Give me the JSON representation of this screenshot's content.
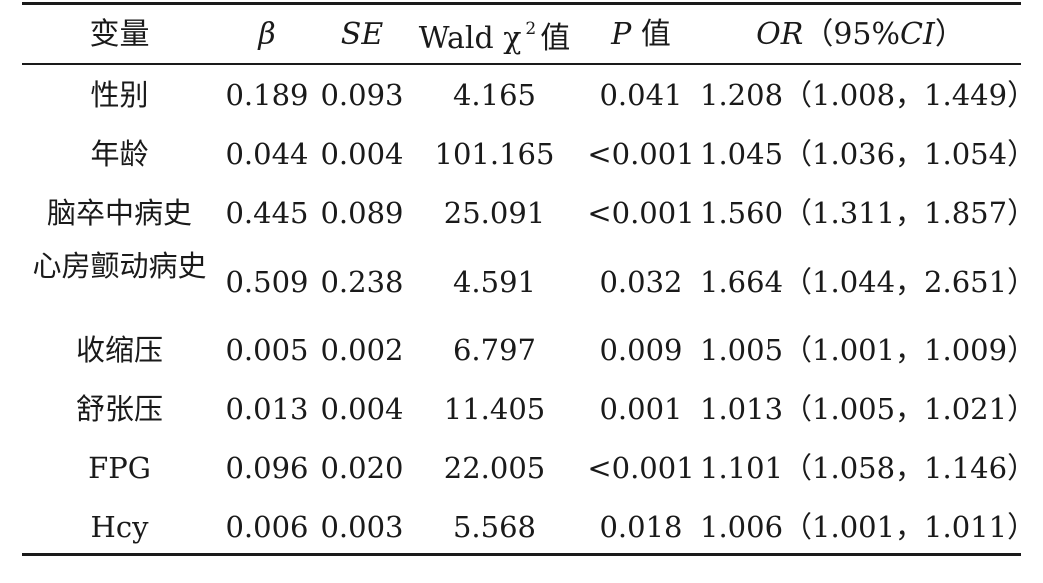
{
  "headers": {
    "variable": "变量",
    "beta": "β",
    "se": "SE",
    "wald_prefix": "Wald χ",
    "wald_sup": "2",
    "wald_suffix": "值",
    "p_italic": "P",
    "p_suffix": "值",
    "or_italic": "OR",
    "or_paren_open": "（95%",
    "or_ci_italic": "CI",
    "or_paren_close": "）"
  },
  "chart_data": {
    "type": "table",
    "columns": [
      "变量",
      "β",
      "SE",
      "Wald χ2 值",
      "P 值",
      "OR（95%CI）"
    ],
    "rows": [
      {
        "variable": "性别",
        "beta": "0.189",
        "se": "0.093",
        "wald": "4.165",
        "p": "0.041",
        "or": "1.208（1.008，1.449）"
      },
      {
        "variable": "年龄",
        "beta": "0.044",
        "se": "0.004",
        "wald": "101.165",
        "p": "<0.001",
        "or": "1.045（1.036，1.054）"
      },
      {
        "variable": "脑卒中病史",
        "beta": "0.445",
        "se": "0.089",
        "wald": "25.091",
        "p": "<0.001",
        "or": "1.560（1.311，1.857）"
      },
      {
        "variable": "心房颤动病史",
        "beta": "0.509",
        "se": "0.238",
        "wald": "4.591",
        "p": "0.032",
        "or": "1.664（1.044，2.651）"
      },
      {
        "variable": "收缩压",
        "beta": "0.005",
        "se": "0.002",
        "wald": "6.797",
        "p": "0.009",
        "or": "1.005（1.001，1.009）"
      },
      {
        "variable": "舒张压",
        "beta": "0.013",
        "se": "0.004",
        "wald": "11.405",
        "p": "0.001",
        "or": "1.013（1.005，1.021）"
      },
      {
        "variable": "FPG",
        "beta": "0.096",
        "se": "0.020",
        "wald": "22.005",
        "p": "<0.001",
        "or": "1.101（1.058，1.146）"
      },
      {
        "variable": "Hcy",
        "beta": "0.006",
        "se": "0.003",
        "wald": "5.568",
        "p": "0.018",
        "or": "1.006（1.001，1.011）"
      }
    ]
  }
}
